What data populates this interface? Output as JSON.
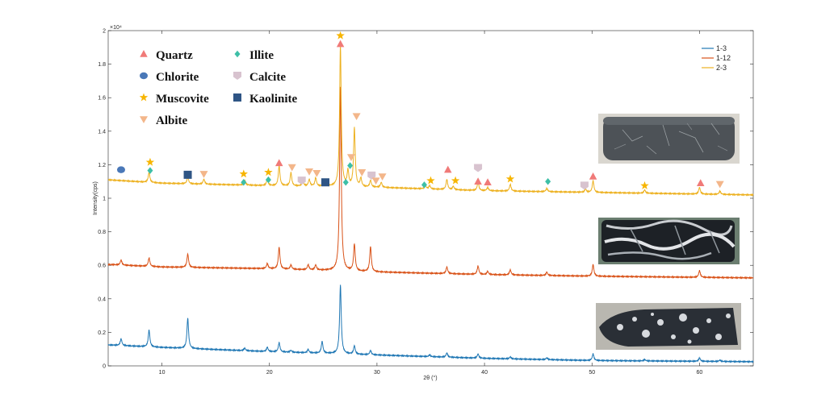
{
  "chart_data": {
    "type": "line",
    "title": "",
    "xlabel": "2θ (°)",
    "ylabel": "Intensity(cps)",
    "xlim": [
      5,
      65
    ],
    "ylim": [
      0,
      20000
    ],
    "y_exponent_label": "×10⁴",
    "xticks": [
      10,
      20,
      30,
      40,
      50,
      60
    ],
    "yticks": [
      0,
      0.2,
      0.4,
      0.6,
      0.8,
      1,
      1.2,
      1.4,
      1.6,
      1.8,
      2
    ],
    "grid": false,
    "legend_position": "top-right",
    "series": [
      {
        "name": "1-3",
        "color": "#1f77b4",
        "baseline": [
          [
            5,
            1250
          ],
          [
            10,
            1100
          ],
          [
            20,
            850
          ],
          [
            30,
            650
          ],
          [
            40,
            450
          ],
          [
            50,
            320
          ],
          [
            65,
            250
          ]
        ],
        "peaks": [
          [
            6.2,
            400
          ],
          [
            8.8,
            1000
          ],
          [
            12.4,
            1800
          ],
          [
            17.7,
            150
          ],
          [
            19.8,
            250
          ],
          [
            20.9,
            550
          ],
          [
            22.0,
            120
          ],
          [
            23.6,
            200
          ],
          [
            24.9,
            700
          ],
          [
            26.6,
            4100
          ],
          [
            27.9,
            500
          ],
          [
            29.4,
            250
          ],
          [
            34.9,
            100
          ],
          [
            36.5,
            250
          ],
          [
            39.4,
            250
          ],
          [
            42.4,
            120
          ],
          [
            45.8,
            100
          ],
          [
            50.1,
            400
          ],
          [
            54.9,
            80
          ],
          [
            60.0,
            200
          ],
          [
            61.9,
            80
          ]
        ]
      },
      {
        "name": "1-12",
        "color": "#d95319",
        "baseline": [
          [
            5,
            6050
          ],
          [
            10,
            5900
          ],
          [
            20,
            5800
          ],
          [
            30,
            5600
          ],
          [
            40,
            5450
          ],
          [
            50,
            5350
          ],
          [
            65,
            5250
          ]
        ],
        "peaks": [
          [
            6.2,
            300
          ],
          [
            8.8,
            500
          ],
          [
            12.4,
            800
          ],
          [
            19.8,
            300
          ],
          [
            20.9,
            1300
          ],
          [
            22.0,
            250
          ],
          [
            23.6,
            300
          ],
          [
            24.3,
            300
          ],
          [
            26.6,
            11000
          ],
          [
            27.9,
            1600
          ],
          [
            29.4,
            1500
          ],
          [
            36.5,
            400
          ],
          [
            39.4,
            500
          ],
          [
            40.3,
            200
          ],
          [
            42.4,
            300
          ],
          [
            45.8,
            200
          ],
          [
            50.1,
            700
          ],
          [
            60.0,
            400
          ]
        ]
      },
      {
        "name": "2-3",
        "color": "#edb120",
        "baseline": [
          [
            5,
            11100
          ],
          [
            10,
            10900
          ],
          [
            20,
            10750
          ],
          [
            30,
            10650
          ],
          [
            40,
            10450
          ],
          [
            50,
            10350
          ],
          [
            65,
            10200
          ]
        ],
        "peaks": [
          [
            8.8,
            600
          ],
          [
            12.4,
            400
          ],
          [
            13.9,
            300
          ],
          [
            17.7,
            300
          ],
          [
            19.8,
            400
          ],
          [
            20.9,
            1200
          ],
          [
            22.0,
            800
          ],
          [
            23.1,
            300
          ],
          [
            23.7,
            400
          ],
          [
            24.3,
            500
          ],
          [
            25.2,
            400
          ],
          [
            26.6,
            8400
          ],
          [
            27.3,
            900
          ],
          [
            27.9,
            3500
          ],
          [
            28.5,
            500
          ],
          [
            29.4,
            400
          ],
          [
            30.4,
            300
          ],
          [
            34.5,
            200
          ],
          [
            34.9,
            200
          ],
          [
            36.5,
            600
          ],
          [
            37.1,
            200
          ],
          [
            39.4,
            500
          ],
          [
            40.3,
            200
          ],
          [
            42.4,
            400
          ],
          [
            45.8,
            200
          ],
          [
            49.4,
            200
          ],
          [
            50.1,
            700
          ],
          [
            54.9,
            200
          ],
          [
            60.0,
            400
          ],
          [
            61.9,
            200
          ]
        ]
      }
    ],
    "markers": [
      {
        "mineral": "Chlorite",
        "x": 6.2,
        "y": 11700
      },
      {
        "mineral": "Illite",
        "x": 8.9,
        "y": 11650
      },
      {
        "mineral": "Muscovite",
        "x": 8.9,
        "y": 12150
      },
      {
        "mineral": "Kaolinite",
        "x": 12.4,
        "y": 11400
      },
      {
        "mineral": "Albite",
        "x": 13.9,
        "y": 11450
      },
      {
        "mineral": "Muscovite",
        "x": 17.6,
        "y": 11450
      },
      {
        "mineral": "Illite",
        "x": 17.6,
        "y": 10950
      },
      {
        "mineral": "Muscovite",
        "x": 19.9,
        "y": 11550
      },
      {
        "mineral": "Illite",
        "x": 19.9,
        "y": 11100
      },
      {
        "mineral": "Quartz",
        "x": 20.9,
        "y": 12100
      },
      {
        "mineral": "Albite",
        "x": 22.1,
        "y": 11850
      },
      {
        "mineral": "Calcite",
        "x": 23.0,
        "y": 11050
      },
      {
        "mineral": "Albite",
        "x": 23.7,
        "y": 11600
      },
      {
        "mineral": "Albite",
        "x": 24.4,
        "y": 11500
      },
      {
        "mineral": "Kaolinite",
        "x": 25.2,
        "y": 10950
      },
      {
        "mineral": "Muscovite",
        "x": 26.6,
        "y": 19700
      },
      {
        "mineral": "Quartz",
        "x": 26.6,
        "y": 19200
      },
      {
        "mineral": "Illite",
        "x": 27.1,
        "y": 10950
      },
      {
        "mineral": "Illite",
        "x": 27.5,
        "y": 11950
      },
      {
        "mineral": "Albite",
        "x": 27.6,
        "y": 12450
      },
      {
        "mineral": "Albite",
        "x": 28.1,
        "y": 14900
      },
      {
        "mineral": "Albite",
        "x": 28.6,
        "y": 11550
      },
      {
        "mineral": "Calcite",
        "x": 29.5,
        "y": 11350
      },
      {
        "mineral": "Albite",
        "x": 29.9,
        "y": 11050
      },
      {
        "mineral": "Albite",
        "x": 30.5,
        "y": 11300
      },
      {
        "mineral": "Illite",
        "x": 34.4,
        "y": 10800
      },
      {
        "mineral": "Muscovite",
        "x": 35.0,
        "y": 11050
      },
      {
        "mineral": "Quartz",
        "x": 36.6,
        "y": 11700
      },
      {
        "mineral": "Muscovite",
        "x": 37.3,
        "y": 11050
      },
      {
        "mineral": "Calcite",
        "x": 39.4,
        "y": 11800
      },
      {
        "mineral": "Quartz",
        "x": 39.4,
        "y": 11000
      },
      {
        "mineral": "Quartz",
        "x": 40.3,
        "y": 10950
      },
      {
        "mineral": "Muscovite",
        "x": 42.4,
        "y": 11150
      },
      {
        "mineral": "Illite",
        "x": 45.9,
        "y": 11000
      },
      {
        "mineral": "Calcite",
        "x": 49.3,
        "y": 10750
      },
      {
        "mineral": "Quartz",
        "x": 50.1,
        "y": 11300
      },
      {
        "mineral": "Muscovite",
        "x": 54.9,
        "y": 10750
      },
      {
        "mineral": "Quartz",
        "x": 60.1,
        "y": 10900
      },
      {
        "mineral": "Albite",
        "x": 61.9,
        "y": 10850
      }
    ]
  },
  "mineral_legend": [
    {
      "name": "Quartz",
      "symbol": "triangle",
      "color": "#f07a78"
    },
    {
      "name": "Illite",
      "symbol": "diamond",
      "color": "#3dbfa7"
    },
    {
      "name": "Chlorite",
      "symbol": "circle",
      "color": "#4a78b8"
    },
    {
      "name": "Calcite",
      "symbol": "shield",
      "color": "#d8c3cf"
    },
    {
      "name": "Muscovite",
      "symbol": "star",
      "color": "#f7b500"
    },
    {
      "name": "Kaolinite",
      "symbol": "square",
      "color": "#2f5585"
    },
    {
      "name": "Albite",
      "symbol": "inverted-triangle",
      "color": "#f3b68a"
    }
  ],
  "photos": [
    {
      "name": "core-photo-2-3",
      "tone": "light-grey"
    },
    {
      "name": "core-photo-1-12",
      "tone": "dark-banded"
    },
    {
      "name": "core-photo-1-3",
      "tone": "dark-spotted"
    }
  ]
}
